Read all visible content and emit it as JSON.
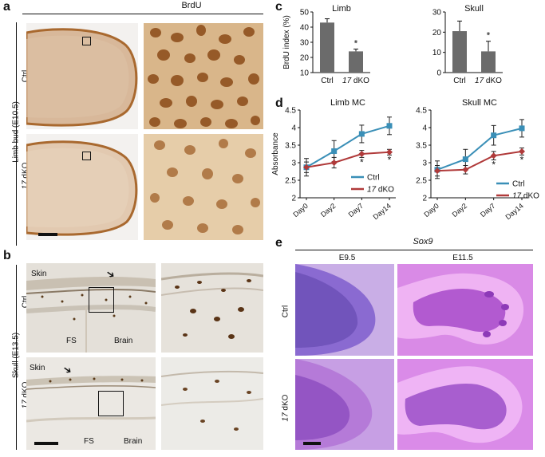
{
  "panels": {
    "a": {
      "label": "a",
      "header": "BrdU",
      "side_label": "Limb bud (E10.5)",
      "row_labels": [
        {
          "prefix": "",
          "suffix": "Ctrl"
        },
        {
          "prefix": "17",
          "suffix": " dKO"
        }
      ]
    },
    "b": {
      "label": "b",
      "side_label": "Skull (E13.5)",
      "row_labels": [
        {
          "prefix": "",
          "suffix": "Ctrl"
        },
        {
          "prefix": "17",
          "suffix": " dKO"
        }
      ],
      "annotations": {
        "skin": "Skin",
        "fs": "FS",
        "brain": "Brain"
      }
    },
    "c": {
      "label": "c"
    },
    "d": {
      "label": "d"
    },
    "e": {
      "label": "e",
      "header": "Sox9",
      "columns": [
        "E9.5",
        "E11.5"
      ],
      "row_labels": [
        {
          "prefix": "",
          "suffix": "Ctrl"
        },
        {
          "prefix": "17",
          "suffix": " dKO"
        }
      ]
    }
  },
  "colors": {
    "bar": "#6b6b6b",
    "ctrl": "#3a8fb7",
    "dko": "#b03a3a",
    "stain_brown": "#a8682e",
    "whole_mount_purple": "#9a4fcf"
  },
  "chart_data": [
    {
      "id": "c-limb",
      "type": "bar",
      "title": "Limb",
      "ylabel": "BrdU index (%)",
      "categories": [
        {
          "prefix": "",
          "text": "Ctrl"
        },
        {
          "prefix": "17",
          "text": " dKO"
        }
      ],
      "values": [
        43,
        24
      ],
      "errors": [
        2.5,
        1.5
      ],
      "significance": [
        "",
        "*"
      ],
      "ylim": [
        10,
        50
      ],
      "yticks": [
        "10",
        "20",
        "30",
        "40",
        "50"
      ]
    },
    {
      "id": "c-skull",
      "type": "bar",
      "title": "Skull",
      "ylabel": "",
      "categories": [
        {
          "prefix": "",
          "text": "Ctrl"
        },
        {
          "prefix": "17",
          "text": " dKO"
        }
      ],
      "values": [
        20.5,
        10.5
      ],
      "errors": [
        5,
        5
      ],
      "significance": [
        "",
        "*"
      ],
      "ylim": [
        0,
        30
      ],
      "yticks": [
        "0",
        "10",
        "20",
        "30"
      ]
    },
    {
      "id": "d-limb",
      "type": "line",
      "title": "Limb MC",
      "ylabel": "Absorbance",
      "x": [
        "Day0",
        "Day2",
        "Day7",
        "Day14"
      ],
      "ylim": [
        2,
        4.5
      ],
      "yticks": [
        "2",
        "2.5",
        "3",
        "3.5",
        "4",
        "4.5"
      ],
      "series": [
        {
          "name": "Ctrl",
          "prefix": "",
          "values": [
            2.87,
            3.33,
            3.82,
            4.05
          ],
          "errors": [
            0.25,
            0.3,
            0.25,
            0.25
          ],
          "marker": "square",
          "color": "#3a8fb7"
        },
        {
          "name": " dKO",
          "prefix": "17",
          "values": [
            2.87,
            3.0,
            3.25,
            3.3
          ],
          "errors": [
            0.15,
            0.15,
            0.1,
            0.08
          ],
          "marker": "diamond",
          "color": "#b03a3a",
          "significance": [
            "",
            "",
            "*",
            "*"
          ]
        }
      ]
    },
    {
      "id": "d-skull",
      "type": "line",
      "title": "Skull MC",
      "ylabel": "",
      "x": [
        "Day0",
        "Day2",
        "Day7",
        "Day14"
      ],
      "ylim": [
        2,
        4.5
      ],
      "yticks": [
        "2",
        "2.5",
        "3",
        "3.5",
        "4",
        "4.5"
      ],
      "series": [
        {
          "name": "Ctrl",
          "prefix": "",
          "values": [
            2.8,
            3.1,
            3.78,
            3.98
          ],
          "errors": [
            0.25,
            0.28,
            0.28,
            0.25
          ],
          "marker": "square",
          "color": "#3a8fb7"
        },
        {
          "name": " dKO",
          "prefix": "17",
          "values": [
            2.77,
            2.8,
            3.2,
            3.32
          ],
          "errors": [
            0.15,
            0.12,
            0.12,
            0.1
          ],
          "marker": "diamond",
          "color": "#b03a3a",
          "significance": [
            "",
            "",
            "*",
            "*"
          ]
        }
      ]
    }
  ]
}
